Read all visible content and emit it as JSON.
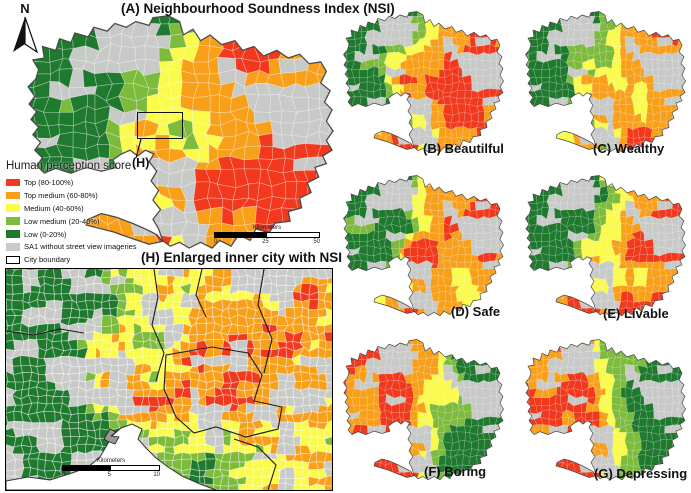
{
  "figure": {
    "north_label": "N"
  },
  "panels": {
    "a": {
      "title": "(A) Neighbourhood Soundness Index (NSI)",
      "callout": "(H)"
    },
    "h": {
      "title": "(H) Enlarged inner city with NSI"
    },
    "small": [
      {
        "id": "B",
        "label": "(B) Beautilful"
      },
      {
        "id": "C",
        "label": "(C) Wealthy"
      },
      {
        "id": "D",
        "label": "(D) Safe"
      },
      {
        "id": "E",
        "label": "(E) Livable"
      },
      {
        "id": "F",
        "label": "(F) Boring"
      },
      {
        "id": "G",
        "label": "(G) Depressing"
      }
    ]
  },
  "legend": {
    "title": "Human perception score",
    "items": [
      {
        "label": "Top (80-100%)",
        "color": "#F2391E",
        "type": "fill"
      },
      {
        "label": "Top medium (60-80%)",
        "color": "#F9A01B",
        "type": "fill"
      },
      {
        "label": "Medium (40-60%)",
        "color": "#FBFB4B",
        "type": "fill"
      },
      {
        "label": "Low medium (20-40%)",
        "color": "#7CBB3B",
        "type": "fill"
      },
      {
        "label": "Low (0-20%)",
        "color": "#1F7A2F",
        "type": "fill"
      },
      {
        "label": "SA1 without street view imageries",
        "color": "#C8CAC8",
        "type": "fill"
      },
      {
        "label": "City boundary",
        "color": "#FFFFFF",
        "type": "outline"
      }
    ]
  },
  "scalebars": {
    "main": {
      "title": "Kilometers",
      "ticks": [
        "0",
        "25",
        "50"
      ]
    },
    "inner": {
      "title": "Kilometers",
      "ticks": [
        "0",
        "5",
        "10"
      ]
    }
  }
}
